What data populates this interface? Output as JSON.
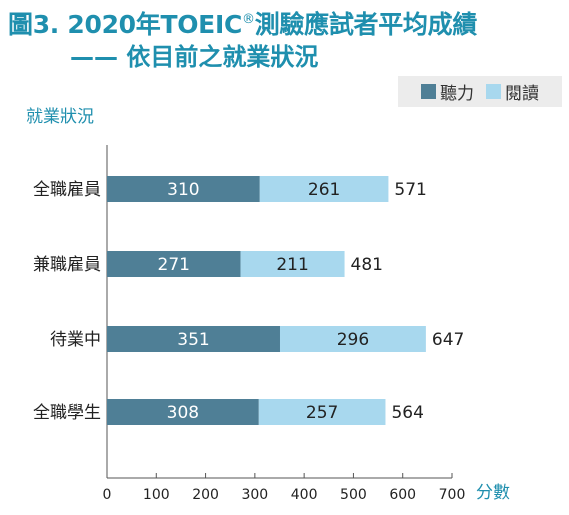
{
  "title_main": "圖3. 2020年TOEIC",
  "title_reg": "®",
  "title_rest": "測驗應試者平均成績",
  "subtitle": "—— 依目前之就業狀況",
  "legend": [
    {
      "name": "聽力",
      "color": "#4f7f96"
    },
    {
      "name": "閱讀",
      "color": "#a8d8ee"
    }
  ],
  "chart_data": {
    "type": "bar",
    "orientation": "horizontal",
    "stacked": true,
    "categories": [
      "全職雇員",
      "兼職雇員",
      "待業中",
      "全職學生"
    ],
    "series": [
      {
        "name": "聽力",
        "values": [
          310,
          271,
          351,
          308
        ],
        "color": "#4f7f96"
      },
      {
        "name": "閱讀",
        "values": [
          261,
          211,
          296,
          257
        ],
        "color": "#a8d8ee"
      }
    ],
    "totals": [
      571,
      481,
      647,
      564
    ],
    "ylabel": "就業狀況",
    "xlabel": "分數",
    "xlim": [
      0,
      700
    ],
    "xticks": [
      0,
      100,
      200,
      300,
      400,
      500,
      600,
      700
    ],
    "legend_position": "top-right",
    "grid": false
  }
}
